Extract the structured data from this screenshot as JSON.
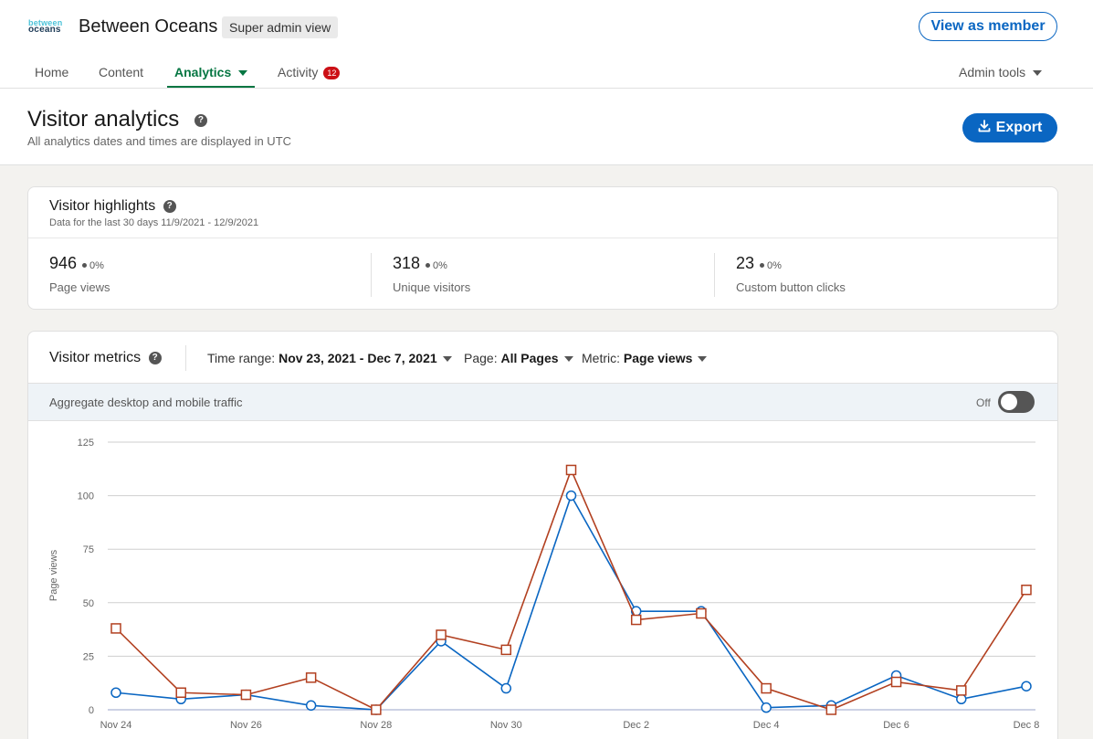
{
  "org": {
    "logo_top": "between",
    "logo_bottom": "oceans",
    "name": "Between Oceans",
    "badge": "Super admin view",
    "view_as_member": "View as member"
  },
  "nav": {
    "tabs": [
      {
        "label": "Home"
      },
      {
        "label": "Content"
      },
      {
        "label": "Analytics",
        "active": true
      },
      {
        "label": "Activity",
        "badge": "12"
      }
    ],
    "admin_tools": "Admin tools"
  },
  "header": {
    "title": "Visitor analytics",
    "help": "?",
    "subtitle": "All analytics dates and times are displayed in UTC",
    "export": "Export"
  },
  "highlights": {
    "title": "Visitor highlights",
    "subtitle": "Data for the last 30 days 11/9/2021 - 12/9/2021",
    "stats": [
      {
        "value": "946",
        "delta": "0%",
        "label": "Page views"
      },
      {
        "value": "318",
        "delta": "0%",
        "label": "Unique visitors"
      },
      {
        "value": "23",
        "delta": "0%",
        "label": "Custom button clicks"
      }
    ]
  },
  "metrics": {
    "title": "Visitor metrics",
    "time_range_label": "Time range:",
    "time_range_value": "Nov 23, 2021 - Dec 7, 2021",
    "page_label": "Page:",
    "page_value": "All Pages",
    "metric_label": "Metric:",
    "metric_value": "Page views",
    "aggregate_label": "Aggregate desktop and mobile traffic",
    "toggle_state": "Off"
  },
  "colors": {
    "series_blue": "#0a66c2",
    "series_orange": "#b24020",
    "accent_green": "#057642",
    "primary_blue": "#0a66c2"
  },
  "chart_data": {
    "type": "line",
    "ylabel": "Page views",
    "ylim": [
      0,
      125
    ],
    "yticks": [
      0,
      25,
      50,
      75,
      100,
      125
    ],
    "x": [
      "Nov 24",
      "Nov 25",
      "Nov 26",
      "Nov 27",
      "Nov 28",
      "Nov 29",
      "Nov 30",
      "Dec 1",
      "Dec 2",
      "Dec 3",
      "Dec 4",
      "Dec 5",
      "Dec 6",
      "Dec 7",
      "Dec 8"
    ],
    "xtick_labels": [
      "Nov 24",
      "Nov 26",
      "Nov 28",
      "Nov 30",
      "Dec 2",
      "Dec 4",
      "Dec 6",
      "Dec 8"
    ],
    "series": [
      {
        "marker": "circle",
        "color": "#0a66c2",
        "values": [
          8,
          5,
          7,
          2,
          0,
          32,
          10,
          100,
          46,
          46,
          1,
          2,
          16,
          5,
          11
        ]
      },
      {
        "marker": "square",
        "color": "#b24020",
        "values": [
          38,
          8,
          7,
          15,
          0,
          35,
          28,
          112,
          42,
          45,
          10,
          0,
          13,
          9,
          56
        ]
      }
    ],
    "grid": true
  }
}
